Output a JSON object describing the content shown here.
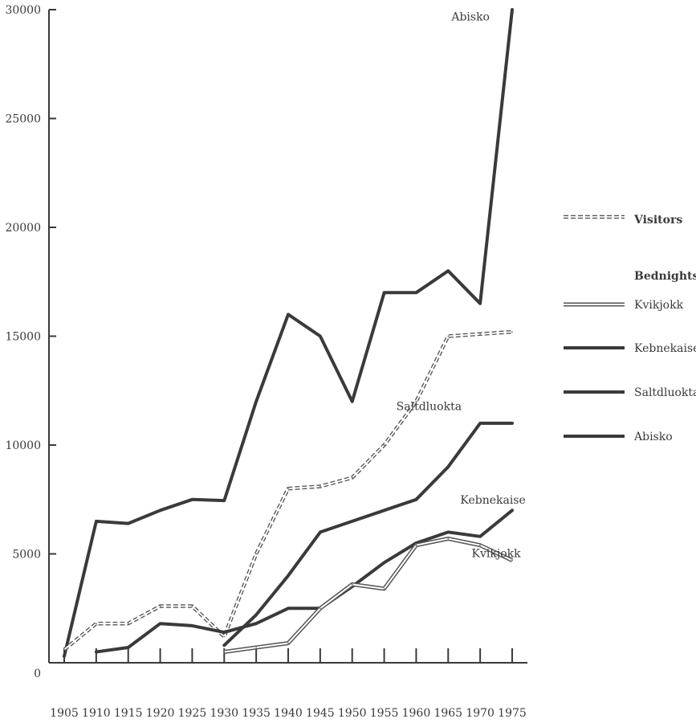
{
  "chart_data": {
    "type": "line",
    "title": "",
    "xlabel": "",
    "ylabel": "",
    "x": [
      1905,
      1910,
      1915,
      1920,
      1925,
      1930,
      1935,
      1940,
      1945,
      1950,
      1955,
      1960,
      1965,
      1970,
      1975
    ],
    "x_ticks": [
      "1905",
      "1910",
      "1915",
      "1920",
      "1925",
      "1930",
      "1935",
      "1940",
      "1945",
      "1950",
      "1955",
      "1960",
      "1965",
      "1970",
      "1975"
    ],
    "y_ticks": [
      "0",
      "5000",
      "10000",
      "15000",
      "20000",
      "25000",
      "30000"
    ],
    "xlim": [
      1905,
      1975
    ],
    "ylim": [
      0,
      30000
    ],
    "grid": false,
    "legend_position": "right",
    "legend": {
      "visitors_label": "Visitors",
      "bednights_title": "Bednights",
      "items": [
        "Kvikjokk",
        "Kebnekaise",
        "Saltdluokta",
        "Abisko"
      ]
    },
    "series": [
      {
        "name": "Abisko",
        "style": "bednights",
        "color": "#3a3a3a",
        "points": [
          [
            1905,
            300
          ],
          [
            1910,
            6500
          ],
          [
            1915,
            6400
          ],
          [
            1920,
            7000
          ],
          [
            1925,
            7500
          ],
          [
            1930,
            7450
          ],
          [
            1935,
            12000
          ],
          [
            1940,
            16000
          ],
          [
            1945,
            15000
          ],
          [
            1950,
            12000
          ],
          [
            1955,
            17000
          ],
          [
            1960,
            17000
          ],
          [
            1965,
            18000
          ],
          [
            1970,
            16500
          ],
          [
            1975,
            30000
          ]
        ]
      },
      {
        "name": "Visitors",
        "style": "visitors",
        "color": "#555555",
        "points": [
          [
            1905,
            600
          ],
          [
            1910,
            1800
          ],
          [
            1915,
            1800
          ],
          [
            1920,
            2600
          ],
          [
            1925,
            2600
          ],
          [
            1930,
            1200
          ],
          [
            1935,
            5000
          ],
          [
            1940,
            8000
          ],
          [
            1945,
            8100
          ],
          [
            1950,
            8500
          ],
          [
            1955,
            10000
          ],
          [
            1960,
            12000
          ],
          [
            1965,
            15000
          ],
          [
            1970,
            15100
          ],
          [
            1975,
            15200
          ]
        ]
      },
      {
        "name": "Saltdluokta",
        "style": "bednights",
        "color": "#3a3a3a",
        "points": [
          [
            1930,
            800
          ],
          [
            1935,
            2200
          ],
          [
            1940,
            4000
          ],
          [
            1945,
            6000
          ],
          [
            1950,
            6500
          ],
          [
            1955,
            7000
          ],
          [
            1960,
            7500
          ],
          [
            1965,
            9000
          ],
          [
            1970,
            11000
          ],
          [
            1975,
            11000
          ]
        ]
      },
      {
        "name": "Kebnekaise",
        "style": "bednights",
        "color": "#3a3a3a",
        "points": [
          [
            1910,
            500
          ],
          [
            1915,
            700
          ],
          [
            1920,
            1800
          ],
          [
            1925,
            1700
          ],
          [
            1930,
            1400
          ],
          [
            1935,
            1800
          ],
          [
            1940,
            2500
          ],
          [
            1945,
            2500
          ],
          [
            1950,
            3500
          ],
          [
            1955,
            4600
          ],
          [
            1960,
            5500
          ],
          [
            1965,
            6000
          ],
          [
            1970,
            5800
          ],
          [
            1975,
            7000
          ]
        ]
      },
      {
        "name": "Kvikjokk",
        "style": "double",
        "color": "#555555",
        "points": [
          [
            1930,
            500
          ],
          [
            1935,
            700
          ],
          [
            1940,
            900
          ],
          [
            1945,
            2500
          ],
          [
            1950,
            3600
          ],
          [
            1955,
            3400
          ],
          [
            1960,
            5400
          ],
          [
            1965,
            5700
          ],
          [
            1970,
            5400
          ],
          [
            1975,
            4700
          ]
        ]
      }
    ],
    "annotations": [
      {
        "text": "Abisko",
        "x": 1968.5,
        "y": 29500
      },
      {
        "text": "Saltdluokta",
        "x": 1962,
        "y": 11600
      },
      {
        "text": "Kebnekaise",
        "x": 1972,
        "y": 7300
      },
      {
        "text": "Kvikjokk",
        "x": 1972.5,
        "y": 4850
      }
    ]
  }
}
